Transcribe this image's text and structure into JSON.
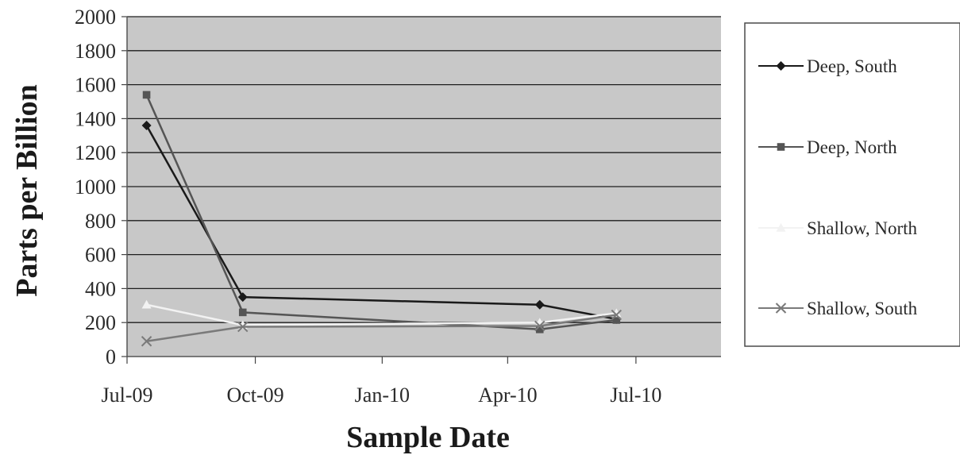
{
  "chart_data": {
    "type": "line",
    "title": "",
    "xlabel": "Sample Date",
    "ylabel": "Parts per Billion",
    "ylim": [
      0,
      2000
    ],
    "y_ticks": [
      0,
      200,
      400,
      600,
      800,
      1000,
      1200,
      1400,
      1600,
      1800,
      2000
    ],
    "xlim": [
      "2009-06-15",
      "2010-08-15"
    ],
    "x_tick_dates": [
      "2009-06-15",
      "2009-09-15",
      "2009-12-15",
      "2010-03-15",
      "2010-06-15"
    ],
    "x_tick_labels": [
      "Jul-09",
      "Oct-09",
      "Jan-10",
      "Apr-10",
      "Jul-10"
    ],
    "grid": true,
    "legend_position": "right",
    "plot_background": "#c8c8c8",
    "series": [
      {
        "name": "Deep, South",
        "marker": "diamond",
        "color": "#1a1a1a",
        "x": [
          "2009-06-29",
          "2009-09-06",
          "2010-04-07",
          "2010-06-01"
        ],
        "y": [
          1360,
          350,
          305,
          220
        ]
      },
      {
        "name": "Deep, North",
        "marker": "square",
        "color": "#555555",
        "x": [
          "2009-06-29",
          "2009-09-06",
          "2010-04-07",
          "2010-06-01"
        ],
        "y": [
          1540,
          260,
          160,
          215
        ]
      },
      {
        "name": "Shallow, North",
        "marker": "triangle",
        "color": "#f2f2f2",
        "x": [
          "2009-06-29",
          "2009-09-06",
          "2010-04-07",
          "2010-06-01"
        ],
        "y": [
          305,
          185,
          200,
          255
        ]
      },
      {
        "name": "Shallow, South",
        "marker": "x",
        "color": "#7a7a7a",
        "x": [
          "2009-06-29",
          "2009-09-06",
          "2010-04-07",
          "2010-06-01"
        ],
        "y": [
          90,
          175,
          180,
          245
        ]
      }
    ]
  }
}
